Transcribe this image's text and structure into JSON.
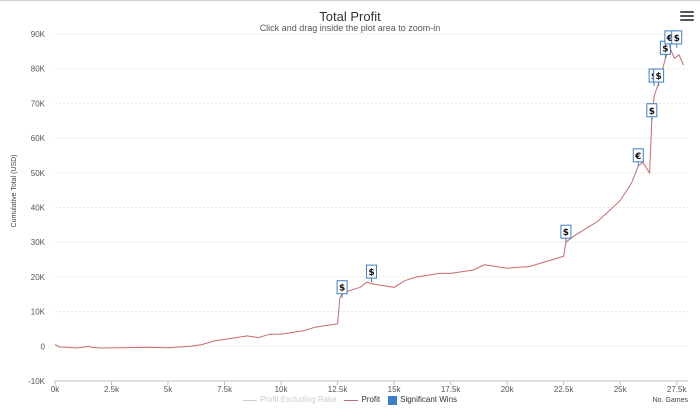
{
  "title": "Total Profit",
  "subtitle": "Click and drag inside the plot area to zoom-in",
  "menu_icon": "hamburger-menu-icon",
  "chart_data": {
    "type": "line",
    "ylabel": "Cumulative Total (USD)",
    "xlabel": "No. Games",
    "xlim": [
      0,
      28000
    ],
    "ylim": [
      -10000,
      90000
    ],
    "x_ticks": [
      0,
      2500,
      5000,
      7500,
      10000,
      12500,
      15000,
      17500,
      20000,
      22500,
      25000,
      27500
    ],
    "x_tick_labels": [
      "0k",
      "2.5k",
      "5k",
      "7.5k",
      "10k",
      "12.5k",
      "15k",
      "17.5k",
      "20k",
      "22.5k",
      "25k",
      "27.5k"
    ],
    "y_ticks": [
      -10000,
      0,
      10000,
      20000,
      30000,
      40000,
      50000,
      60000,
      70000,
      80000,
      90000
    ],
    "y_tick_labels": [
      "-10K",
      "0",
      "10K",
      "20K",
      "30K",
      "40K",
      "50K",
      "60K",
      "70K",
      "80K",
      "90K"
    ],
    "grid": true,
    "legend_position": "bottom",
    "legend": [
      {
        "name": "Profit Excluding Rake",
        "color": "#cccccc",
        "kind": "line"
      },
      {
        "name": "Profit",
        "color": "#c96a6a",
        "kind": "line"
      },
      {
        "name": "Significant Wins",
        "color": "#3d7fc7",
        "kind": "box"
      }
    ],
    "series": [
      {
        "name": "Profit",
        "color": "#c96a6a",
        "x": [
          0,
          200,
          500,
          1000,
          1500,
          1600,
          2000,
          3000,
          4000,
          5000,
          5500,
          6000,
          6500,
          7000,
          7500,
          8000,
          8500,
          9000,
          9500,
          9600,
          10000,
          10500,
          11000,
          11500,
          12000,
          12500,
          12600,
          12700,
          13000,
          13500,
          13800,
          14000,
          14500,
          15000,
          15500,
          16000,
          16500,
          17000,
          17500,
          18000,
          18500,
          19000,
          19500,
          20000,
          20500,
          21000,
          21500,
          22000,
          22500,
          22600,
          23000,
          23500,
          24000,
          24500,
          25000,
          25500,
          25800,
          26000,
          26200,
          26300,
          26400,
          26500,
          26600,
          26800,
          27000,
          27200,
          27400,
          27600,
          27800
        ],
        "y": [
          500,
          -200,
          -300,
          -500,
          0,
          -300,
          -500,
          -400,
          -300,
          -400,
          -200,
          0,
          500,
          1500,
          2000,
          2500,
          3000,
          2500,
          3500,
          3500,
          3500,
          4000,
          4500,
          5500,
          6000,
          6500,
          14000,
          15000,
          16000,
          17000,
          18500,
          18000,
          17500,
          17000,
          19000,
          20000,
          20500,
          21000,
          21000,
          21500,
          22000,
          23500,
          23000,
          22500,
          22800,
          23000,
          24000,
          25000,
          26000,
          30000,
          32000,
          34000,
          36000,
          39000,
          42000,
          47000,
          52000,
          53000,
          51000,
          50000,
          65000,
          72000,
          74000,
          78000,
          83000,
          86000,
          83000,
          84000,
          81000
        ]
      }
    ],
    "significant_wins": [
      {
        "x": 12700,
        "y": 14000,
        "label": "$"
      },
      {
        "x": 14000,
        "y": 18500,
        "label": "$"
      },
      {
        "x": 22600,
        "y": 30000,
        "label": "$"
      },
      {
        "x": 25800,
        "y": 52000,
        "label": "€"
      },
      {
        "x": 26400,
        "y": 65000,
        "label": "$"
      },
      {
        "x": 26500,
        "y": 75000,
        "label": "$"
      },
      {
        "x": 26700,
        "y": 75000,
        "label": "$"
      },
      {
        "x": 27000,
        "y": 83000,
        "label": "$"
      },
      {
        "x": 27200,
        "y": 86000,
        "label": "€"
      },
      {
        "x": 27500,
        "y": 86000,
        "label": "$"
      }
    ]
  }
}
